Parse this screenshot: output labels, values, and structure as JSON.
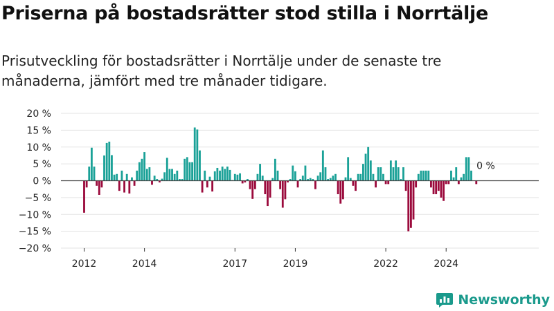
{
  "title": "Priserna på bostadsrätter stod stilla i Norrtälje",
  "subtitle": "Prisutveckling för bostadsrätter i Norrtälje under de senaste tre månaderna, jämfört med tre månader tidigare.",
  "brand": "Newsworthy",
  "colors": {
    "positive": "#1aa197",
    "negative": "#9b0a3c",
    "zero_line": "#444444",
    "grid": "#e3e3e3"
  },
  "chart_data": {
    "type": "bar",
    "title": "Priserna på bostadsrätter stod stilla i Norrtälje",
    "ylim": [
      -20,
      20
    ],
    "yticks": [
      "20 %",
      "15 %",
      "10 %",
      "5 %",
      "0 %",
      "−5 %",
      "−10 %",
      "−15 %",
      "−20 %"
    ],
    "ytick_values": [
      20,
      15,
      10,
      5,
      0,
      -5,
      -10,
      -15,
      -20
    ],
    "x_tick_labels": [
      "2012",
      "2014",
      "2017",
      "2019",
      "2022",
      "2024"
    ],
    "x_tick_index": [
      0,
      24,
      60,
      84,
      120,
      144
    ],
    "annotation": "0 %",
    "grid": true,
    "values": [
      -9.5,
      -2.0,
      4.2,
      9.8,
      4.2,
      -1.5,
      -4.2,
      -2.0,
      7.5,
      11.2,
      11.6,
      7.6,
      1.8,
      2.0,
      -3.0,
      3.0,
      -3.5,
      2.0,
      -3.8,
      1.0,
      -1.5,
      3.0,
      5.5,
      6.5,
      8.5,
      3.5,
      4.0,
      -1.2,
      1.5,
      0.5,
      -0.5,
      0.6,
      2.5,
      6.8,
      3.5,
      3.5,
      2.0,
      3.0,
      0.5,
      0.5,
      6.5,
      7.0,
      5.5,
      5.5,
      15.8,
      15.2,
      9.0,
      -3.5,
      3.0,
      -2.0,
      1.2,
      -3.2,
      2.8,
      3.8,
      3.0,
      4.2,
      3.5,
      4.2,
      3.2,
      0.2,
      2.0,
      1.8,
      2.2,
      -0.8,
      -0.5,
      0.5,
      -2.5,
      -5.4,
      -2.5,
      2.0,
      5.0,
      1.5,
      -4.0,
      -7.5,
      -5.0,
      0.8,
      6.5,
      3.0,
      -2.5,
      -8.0,
      -5.5,
      -0.5,
      0.5,
      4.5,
      2.8,
      -2.0,
      0.5,
      1.5,
      4.5,
      0.5,
      0.8,
      0.5,
      -2.5,
      1.5,
      2.5,
      9.0,
      4.0,
      0.5,
      0.8,
      1.5,
      2.0,
      -4.0,
      -6.8,
      -5.5,
      1.0,
      7.0,
      0.8,
      -1.5,
      -3.0,
      2.0,
      2.0,
      5.0,
      8.0,
      10.0,
      6.0,
      2.0,
      -2.0,
      4.0,
      4.0,
      2.0,
      -1.0,
      -1.0,
      6.0,
      4.0,
      6.0,
      4.0,
      0.5,
      4.0,
      -3.0,
      -15.0,
      -14.0,
      -11.5,
      -2.0,
      2.0,
      3.0,
      3.0,
      3.0,
      3.0,
      -2.0,
      -4.0,
      -4.0,
      -3.0,
      -5.0,
      -6.0,
      -1.0,
      -1.0,
      3.0,
      1.0,
      4.0,
      -1.0,
      1.0,
      2.0,
      7.0,
      7.0,
      3.0,
      0.0,
      -1.0
    ]
  }
}
